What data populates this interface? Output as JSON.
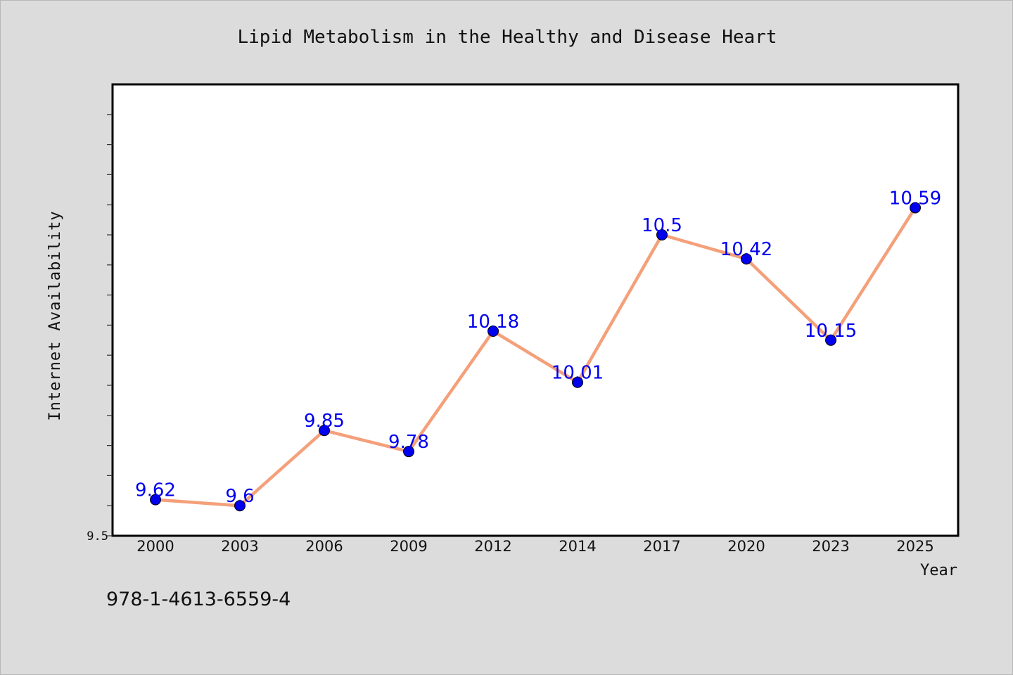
{
  "chart_data": {
    "type": "line",
    "title": "Lipid Metabolism in the Healthy and Disease Heart",
    "xlabel": "Year",
    "ylabel": "Internet Availability",
    "categories": [
      "2000",
      "2003",
      "2006",
      "2009",
      "2012",
      "2014",
      "2017",
      "2020",
      "2023",
      "2025"
    ],
    "values": [
      9.62,
      9.6,
      9.85,
      9.78,
      10.18,
      10.01,
      10.5,
      10.42,
      10.15,
      10.59
    ],
    "data_labels": [
      "9.62",
      "9.6",
      "9.85",
      "9.78",
      "10.18",
      "10.01",
      "10.5",
      "10.42",
      "10.15",
      "10.59"
    ],
    "y_tick_label": "9.5",
    "ylim": [
      9.5,
      11.0
    ],
    "y_minor_step": 0.1,
    "grid": false,
    "line_color": "#f4a07a",
    "marker_color": "#0000ee",
    "label_color": "#0000ee",
    "plot_background": "#ffffff",
    "page_background": "#dcdcdc"
  },
  "footer_text": "978-1-4613-6559-4"
}
